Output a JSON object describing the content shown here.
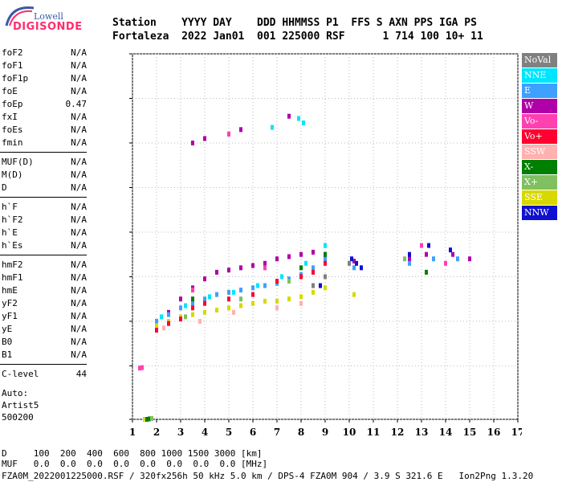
{
  "logo": {
    "top": "Lowell",
    "bottom": "DIGISONDE"
  },
  "header": {
    "line1": "Station    YYYY DAY    DDD HHMMSS P1  FFS S AXN PPS IGA PS",
    "line2": "Fortaleza  2022 Jan01  001 225000 RSF      1 714 100 10+ 11"
  },
  "params": {
    "group1": [
      {
        "name": "foF2",
        "value": "N/A"
      },
      {
        "name": "foF1",
        "value": "N/A"
      },
      {
        "name": "foF1p",
        "value": "N/A"
      },
      {
        "name": "foE",
        "value": "N/A"
      },
      {
        "name": "foEp",
        "value": "0.47"
      },
      {
        "name": "fxI",
        "value": "N/A"
      },
      {
        "name": "foEs",
        "value": "N/A"
      },
      {
        "name": "fmin",
        "value": "N/A"
      }
    ],
    "group2": [
      {
        "name": "MUF(D)",
        "value": "N/A"
      },
      {
        "name": "M(D)",
        "value": "N/A"
      },
      {
        "name": "D",
        "value": "N/A"
      }
    ],
    "group3": [
      {
        "name": "h`F",
        "value": "N/A"
      },
      {
        "name": "h`F2",
        "value": "N/A"
      },
      {
        "name": "h`E",
        "value": "N/A"
      },
      {
        "name": "h`Es",
        "value": "N/A"
      }
    ],
    "group4": [
      {
        "name": "hmF2",
        "value": "N/A"
      },
      {
        "name": "hmF1",
        "value": "N/A"
      },
      {
        "name": "hmE",
        "value": "N/A"
      },
      {
        "name": "yF2",
        "value": "N/A"
      },
      {
        "name": "yF1",
        "value": "N/A"
      },
      {
        "name": "yE",
        "value": "N/A"
      },
      {
        "name": "B0",
        "value": "N/A"
      },
      {
        "name": "B1",
        "value": "N/A"
      }
    ],
    "clevel": {
      "name": "C-level",
      "value": "44"
    },
    "auto": [
      "Auto:",
      "Artist5",
      "500200"
    ]
  },
  "legend": [
    {
      "label": "NoVal",
      "color": "#808080"
    },
    {
      "label": "NNE",
      "color": "#00e5ff"
    },
    {
      "label": "E",
      "color": "#3ea0ff"
    },
    {
      "label": "W",
      "color": "#b000a8"
    },
    {
      "label": "Vo-",
      "color": "#ff40b0"
    },
    {
      "label": "Vo+",
      "color": "#ff0030"
    },
    {
      "label": "SSW",
      "color": "#ffb0b0"
    },
    {
      "label": "X-",
      "color": "#008000"
    },
    {
      "label": "X+",
      "color": "#80c060"
    },
    {
      "label": "SSE",
      "color": "#d8d800"
    },
    {
      "label": "NNW",
      "color": "#1010d0"
    }
  ],
  "footer": {
    "line1": "D     100  200  400  600  800 1000 1500 3000 [km]",
    "line2": "MUF   0.0  0.0  0.0  0.0  0.0  0.0  0.0  0.0 [MHz]",
    "line3": "FZA0M_2022001225000.RSF / 320fx256h 50 kHz 5.0 km / DPS-4 FZA0M 904 / 3.9 S 321.6 E   Ion2Png 1.3.20"
  },
  "chart_data": {
    "type": "scatter",
    "title": "",
    "xlabel": "",
    "ylabel": "",
    "xlim": [
      1,
      17
    ],
    "ylim": [
      80,
      900
    ],
    "xticks": [
      1,
      2,
      3,
      4,
      5,
      6,
      7,
      8,
      9,
      10,
      11,
      12,
      13,
      14,
      15,
      16,
      17
    ],
    "yticks": [
      80,
      200,
      300,
      400,
      500,
      600,
      700,
      800,
      900
    ],
    "grid": true,
    "series": [
      {
        "name": "W",
        "points": [
          [
            2.5,
            320
          ],
          [
            3.0,
            350
          ],
          [
            3.5,
            375
          ],
          [
            4.0,
            395
          ],
          [
            4.5,
            410
          ],
          [
            5.0,
            415
          ],
          [
            5.5,
            420
          ],
          [
            6.0,
            425
          ],
          [
            6.5,
            430
          ],
          [
            7.0,
            440
          ],
          [
            7.5,
            445
          ],
          [
            8.0,
            450
          ],
          [
            8.5,
            455
          ],
          [
            9.0,
            470
          ],
          [
            10.2,
            435
          ],
          [
            12.5,
            440
          ],
          [
            13.2,
            450
          ],
          [
            14.3,
            450
          ],
          [
            15.0,
            440
          ],
          [
            3.5,
            700
          ],
          [
            4.0,
            710
          ],
          [
            5.0,
            720
          ],
          [
            5.5,
            730
          ],
          [
            7.5,
            760
          ]
        ]
      },
      {
        "name": "E",
        "points": [
          [
            2.0,
            300
          ],
          [
            2.5,
            315
          ],
          [
            3.0,
            330
          ],
          [
            3.5,
            340
          ],
          [
            4.0,
            350
          ],
          [
            4.5,
            360
          ],
          [
            5.0,
            365
          ],
          [
            5.5,
            370
          ],
          [
            6.0,
            375
          ],
          [
            6.5,
            380
          ],
          [
            7.0,
            385
          ],
          [
            7.5,
            395
          ],
          [
            8.0,
            405
          ],
          [
            8.5,
            420
          ],
          [
            9.0,
            440
          ],
          [
            10.2,
            420
          ],
          [
            12.5,
            430
          ],
          [
            13.5,
            440
          ],
          [
            14.5,
            440
          ]
        ]
      },
      {
        "name": "NNE",
        "points": [
          [
            2.2,
            310
          ],
          [
            3.2,
            335
          ],
          [
            4.2,
            355
          ],
          [
            5.2,
            365
          ],
          [
            6.2,
            380
          ],
          [
            7.2,
            400
          ],
          [
            8.2,
            430
          ],
          [
            9.0,
            470
          ],
          [
            7.9,
            755
          ],
          [
            8.1,
            745
          ],
          [
            6.8,
            735
          ]
        ]
      },
      {
        "name": "SSE",
        "points": [
          [
            2.0,
            290
          ],
          [
            2.5,
            300
          ],
          [
            3.0,
            310
          ],
          [
            3.5,
            315
          ],
          [
            4.0,
            320
          ],
          [
            4.5,
            325
          ],
          [
            5.0,
            330
          ],
          [
            5.5,
            335
          ],
          [
            6.0,
            340
          ],
          [
            6.5,
            345
          ],
          [
            7.0,
            345
          ],
          [
            7.5,
            350
          ],
          [
            8.0,
            355
          ],
          [
            8.5,
            365
          ],
          [
            9.0,
            375
          ],
          [
            1.5,
            80
          ],
          [
            10.2,
            360
          ]
        ]
      },
      {
        "name": "Vo+",
        "points": [
          [
            2.0,
            280
          ],
          [
            2.5,
            295
          ],
          [
            3.0,
            305
          ],
          [
            3.5,
            330
          ],
          [
            4.0,
            340
          ],
          [
            5.0,
            350
          ],
          [
            6.0,
            360
          ],
          [
            7.0,
            390
          ],
          [
            8.0,
            400
          ],
          [
            8.5,
            410
          ],
          [
            9.0,
            430
          ]
        ]
      },
      {
        "name": "NNW",
        "points": [
          [
            9.0,
            450
          ],
          [
            10.1,
            440
          ],
          [
            10.3,
            430
          ],
          [
            10.5,
            420
          ],
          [
            12.5,
            450
          ],
          [
            13.3,
            470
          ],
          [
            14.2,
            460
          ],
          [
            8.8,
            380
          ]
        ]
      },
      {
        "name": "X-",
        "points": [
          [
            1.6,
            80
          ],
          [
            1.7,
            81
          ],
          [
            3.5,
            350
          ],
          [
            8.0,
            420
          ],
          [
            9.0,
            450
          ],
          [
            13.2,
            410
          ],
          [
            8.5,
            380
          ]
        ]
      },
      {
        "name": "X+",
        "points": [
          [
            1.8,
            82
          ],
          [
            3.2,
            310
          ],
          [
            5.5,
            350
          ],
          [
            7.5,
            390
          ],
          [
            12.3,
            440
          ]
        ]
      },
      {
        "name": "SSW",
        "points": [
          [
            2.3,
            285
          ],
          [
            3.8,
            300
          ],
          [
            5.2,
            320
          ],
          [
            7.0,
            330
          ],
          [
            8.0,
            340
          ]
        ]
      },
      {
        "name": "Vo-",
        "points": [
          [
            1.3,
            195
          ],
          [
            1.4,
            196
          ],
          [
            5.0,
            720
          ],
          [
            3.5,
            370
          ],
          [
            6.5,
            420
          ],
          [
            13.0,
            470
          ],
          [
            14.0,
            430
          ]
        ]
      },
      {
        "name": "NoVal",
        "points": [
          [
            8.5,
            380
          ],
          [
            9.0,
            400
          ],
          [
            10.0,
            430
          ]
        ]
      }
    ]
  }
}
